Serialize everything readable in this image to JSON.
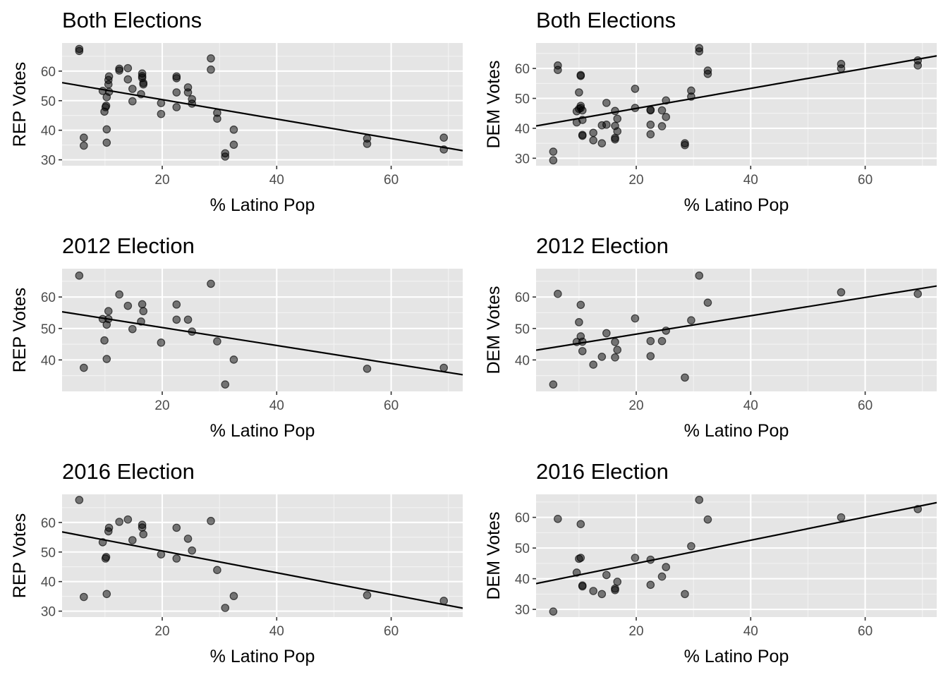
{
  "chart_data": [
    {
      "type": "scatter",
      "title": "Both Elections",
      "xlabel": "% Latino Pop",
      "ylabel": "REP Votes",
      "xlim": [
        2.5,
        72.5
      ],
      "ylim": [
        28,
        69.5
      ],
      "xticks": [
        20,
        40,
        60
      ],
      "yticks": [
        30,
        40,
        50,
        60
      ],
      "grid": true,
      "trend_line": {
        "x": [
          2.5,
          72.5
        ],
        "y": [
          56.1,
          33.1
        ]
      },
      "points": [
        {
          "x": 5.5,
          "y": 67.5
        },
        {
          "x": 5.5,
          "y": 66.8
        },
        {
          "x": 6.3,
          "y": 37.5
        },
        {
          "x": 6.3,
          "y": 34.8
        },
        {
          "x": 9.6,
          "y": 53.3
        },
        {
          "x": 9.9,
          "y": 46.3
        },
        {
          "x": 10.1,
          "y": 47.8
        },
        {
          "x": 10.2,
          "y": 48.3
        },
        {
          "x": 10.3,
          "y": 51.2
        },
        {
          "x": 10.3,
          "y": 40.3
        },
        {
          "x": 10.3,
          "y": 35.8
        },
        {
          "x": 10.6,
          "y": 55.5
        },
        {
          "x": 10.6,
          "y": 57.0
        },
        {
          "x": 10.7,
          "y": 58.2
        },
        {
          "x": 10.7,
          "y": 53.0
        },
        {
          "x": 12.5,
          "y": 60.8
        },
        {
          "x": 12.5,
          "y": 60.2
        },
        {
          "x": 14.0,
          "y": 61.0
        },
        {
          "x": 14.0,
          "y": 57.2
        },
        {
          "x": 14.8,
          "y": 54.0
        },
        {
          "x": 14.8,
          "y": 49.8
        },
        {
          "x": 16.3,
          "y": 52.2
        },
        {
          "x": 16.5,
          "y": 59.2
        },
        {
          "x": 16.5,
          "y": 58.3
        },
        {
          "x": 16.5,
          "y": 57.7
        },
        {
          "x": 16.7,
          "y": 56.0
        },
        {
          "x": 16.7,
          "y": 55.5
        },
        {
          "x": 19.8,
          "y": 49.2
        },
        {
          "x": 19.8,
          "y": 45.5
        },
        {
          "x": 22.5,
          "y": 58.2
        },
        {
          "x": 22.5,
          "y": 57.6
        },
        {
          "x": 22.5,
          "y": 52.8
        },
        {
          "x": 22.5,
          "y": 47.8
        },
        {
          "x": 24.5,
          "y": 54.5
        },
        {
          "x": 24.5,
          "y": 52.8
        },
        {
          "x": 25.2,
          "y": 50.5
        },
        {
          "x": 25.2,
          "y": 49.0
        },
        {
          "x": 28.5,
          "y": 64.3
        },
        {
          "x": 28.5,
          "y": 60.5
        },
        {
          "x": 29.6,
          "y": 45.9
        },
        {
          "x": 29.6,
          "y": 43.9
        },
        {
          "x": 31.0,
          "y": 32.2
        },
        {
          "x": 31.0,
          "y": 31.1
        },
        {
          "x": 32.5,
          "y": 40.2
        },
        {
          "x": 32.5,
          "y": 35.1
        },
        {
          "x": 55.8,
          "y": 37.2
        },
        {
          "x": 55.8,
          "y": 35.4
        },
        {
          "x": 69.2,
          "y": 37.5
        },
        {
          "x": 69.2,
          "y": 33.5
        }
      ]
    },
    {
      "type": "scatter",
      "title": "Both Elections",
      "xlabel": "% Latino Pop",
      "ylabel": "DEM Votes",
      "xlim": [
        2.5,
        72.5
      ],
      "ylim": [
        27.5,
        68.5
      ],
      "xticks": [
        20,
        40,
        60
      ],
      "yticks": [
        30,
        40,
        50,
        60
      ],
      "grid": true,
      "trend_line": {
        "x": [
          2.5,
          72.5
        ],
        "y": [
          40.8,
          64.2
        ]
      },
      "points": [
        {
          "x": 5.5,
          "y": 32.2
        },
        {
          "x": 5.5,
          "y": 29.3
        },
        {
          "x": 6.3,
          "y": 61.0
        },
        {
          "x": 6.3,
          "y": 59.5
        },
        {
          "x": 9.6,
          "y": 45.7
        },
        {
          "x": 9.6,
          "y": 42.0
        },
        {
          "x": 10.0,
          "y": 52.0
        },
        {
          "x": 10.0,
          "y": 46.5
        },
        {
          "x": 10.3,
          "y": 57.8
        },
        {
          "x": 10.3,
          "y": 57.5
        },
        {
          "x": 10.3,
          "y": 47.5
        },
        {
          "x": 10.3,
          "y": 46.8
        },
        {
          "x": 10.6,
          "y": 46.0
        },
        {
          "x": 10.6,
          "y": 42.8
        },
        {
          "x": 10.6,
          "y": 37.8
        },
        {
          "x": 10.6,
          "y": 37.5
        },
        {
          "x": 12.5,
          "y": 38.5
        },
        {
          "x": 12.5,
          "y": 36.0
        },
        {
          "x": 14.0,
          "y": 41.0
        },
        {
          "x": 14.0,
          "y": 35.0
        },
        {
          "x": 14.8,
          "y": 48.5
        },
        {
          "x": 14.8,
          "y": 41.2
        },
        {
          "x": 16.3,
          "y": 45.8
        },
        {
          "x": 16.3,
          "y": 40.8
        },
        {
          "x": 16.3,
          "y": 36.8
        },
        {
          "x": 16.3,
          "y": 36.3
        },
        {
          "x": 16.7,
          "y": 43.2
        },
        {
          "x": 16.7,
          "y": 39.0
        },
        {
          "x": 19.8,
          "y": 53.2
        },
        {
          "x": 19.8,
          "y": 46.8
        },
        {
          "x": 22.5,
          "y": 46.2
        },
        {
          "x": 22.5,
          "y": 46.0
        },
        {
          "x": 22.5,
          "y": 41.2
        },
        {
          "x": 22.5,
          "y": 38.0
        },
        {
          "x": 24.5,
          "y": 46.0
        },
        {
          "x": 24.5,
          "y": 40.7
        },
        {
          "x": 25.2,
          "y": 49.3
        },
        {
          "x": 25.2,
          "y": 43.8
        },
        {
          "x": 28.5,
          "y": 35.0
        },
        {
          "x": 28.5,
          "y": 34.4
        },
        {
          "x": 29.6,
          "y": 52.6
        },
        {
          "x": 29.6,
          "y": 50.6
        },
        {
          "x": 31.0,
          "y": 66.8
        },
        {
          "x": 31.0,
          "y": 65.7
        },
        {
          "x": 32.5,
          "y": 59.3
        },
        {
          "x": 32.5,
          "y": 58.2
        },
        {
          "x": 55.8,
          "y": 61.5
        },
        {
          "x": 55.8,
          "y": 60.0
        },
        {
          "x": 69.2,
          "y": 62.7
        },
        {
          "x": 69.2,
          "y": 61.0
        }
      ]
    },
    {
      "type": "scatter",
      "title": "2012 Election",
      "xlabel": "% Latino Pop",
      "ylabel": "REP Votes",
      "xlim": [
        2.5,
        72.5
      ],
      "ylim": [
        30,
        69
      ],
      "xticks": [
        20,
        40,
        60
      ],
      "yticks": [
        40,
        50,
        60
      ],
      "grid": true,
      "trend_line": {
        "x": [
          2.5,
          72.5
        ],
        "y": [
          55.3,
          35.3
        ]
      },
      "points": [
        {
          "x": 5.5,
          "y": 66.8
        },
        {
          "x": 6.3,
          "y": 37.5
        },
        {
          "x": 9.6,
          "y": 53.0
        },
        {
          "x": 9.9,
          "y": 46.2
        },
        {
          "x": 10.3,
          "y": 51.2
        },
        {
          "x": 10.3,
          "y": 40.3
        },
        {
          "x": 10.6,
          "y": 55.5
        },
        {
          "x": 10.6,
          "y": 53.0
        },
        {
          "x": 12.5,
          "y": 60.8
        },
        {
          "x": 14.0,
          "y": 57.2
        },
        {
          "x": 14.8,
          "y": 49.8
        },
        {
          "x": 16.3,
          "y": 52.2
        },
        {
          "x": 16.5,
          "y": 57.7
        },
        {
          "x": 16.7,
          "y": 55.5
        },
        {
          "x": 19.8,
          "y": 45.5
        },
        {
          "x": 22.5,
          "y": 57.6
        },
        {
          "x": 22.5,
          "y": 52.8
        },
        {
          "x": 24.5,
          "y": 52.8
        },
        {
          "x": 25.2,
          "y": 49.0
        },
        {
          "x": 28.5,
          "y": 64.2
        },
        {
          "x": 29.6,
          "y": 45.9
        },
        {
          "x": 31.0,
          "y": 32.2
        },
        {
          "x": 32.5,
          "y": 40.1
        },
        {
          "x": 55.8,
          "y": 37.2
        },
        {
          "x": 69.2,
          "y": 37.5
        }
      ]
    },
    {
      "type": "scatter",
      "title": "2012 Election",
      "xlabel": "% Latino Pop",
      "ylabel": "DEM Votes",
      "xlim": [
        2.5,
        72.5
      ],
      "ylim": [
        30,
        69
      ],
      "xticks": [
        20,
        40,
        60
      ],
      "yticks": [
        40,
        50,
        60
      ],
      "grid": true,
      "trend_line": {
        "x": [
          2.5,
          72.5
        ],
        "y": [
          43.1,
          63.5
        ]
      },
      "points": [
        {
          "x": 5.5,
          "y": 32.2
        },
        {
          "x": 6.3,
          "y": 61.0
        },
        {
          "x": 9.6,
          "y": 45.7
        },
        {
          "x": 10.0,
          "y": 52.0
        },
        {
          "x": 10.3,
          "y": 57.5
        },
        {
          "x": 10.3,
          "y": 47.5
        },
        {
          "x": 10.6,
          "y": 45.8
        },
        {
          "x": 10.6,
          "y": 42.8
        },
        {
          "x": 12.5,
          "y": 38.5
        },
        {
          "x": 14.0,
          "y": 41.0
        },
        {
          "x": 14.8,
          "y": 48.5
        },
        {
          "x": 16.3,
          "y": 45.7
        },
        {
          "x": 16.3,
          "y": 40.8
        },
        {
          "x": 16.7,
          "y": 43.2
        },
        {
          "x": 19.8,
          "y": 53.2
        },
        {
          "x": 22.5,
          "y": 46.0
        },
        {
          "x": 22.5,
          "y": 41.2
        },
        {
          "x": 24.5,
          "y": 46.0
        },
        {
          "x": 25.2,
          "y": 49.3
        },
        {
          "x": 28.5,
          "y": 34.4
        },
        {
          "x": 29.6,
          "y": 52.6
        },
        {
          "x": 31.0,
          "y": 66.8
        },
        {
          "x": 32.5,
          "y": 58.2
        },
        {
          "x": 55.8,
          "y": 61.5
        },
        {
          "x": 69.2,
          "y": 61.0
        }
      ]
    },
    {
      "type": "scatter",
      "title": "2016 Election",
      "xlabel": "% Latino Pop",
      "ylabel": "REP Votes",
      "xlim": [
        2.5,
        72.5
      ],
      "ylim": [
        28,
        69.5
      ],
      "xticks": [
        20,
        40,
        60
      ],
      "yticks": [
        30,
        40,
        50,
        60
      ],
      "grid": true,
      "trend_line": {
        "x": [
          2.5,
          72.5
        ],
        "y": [
          56.8,
          31.0
        ]
      },
      "points": [
        {
          "x": 5.5,
          "y": 67.6
        },
        {
          "x": 6.3,
          "y": 34.8
        },
        {
          "x": 9.6,
          "y": 53.3
        },
        {
          "x": 10.1,
          "y": 47.8
        },
        {
          "x": 10.2,
          "y": 48.3
        },
        {
          "x": 10.3,
          "y": 35.8
        },
        {
          "x": 10.6,
          "y": 57.0
        },
        {
          "x": 10.7,
          "y": 58.2
        },
        {
          "x": 12.5,
          "y": 60.2
        },
        {
          "x": 14.0,
          "y": 61.0
        },
        {
          "x": 14.8,
          "y": 54.0
        },
        {
          "x": 16.5,
          "y": 59.2
        },
        {
          "x": 16.5,
          "y": 58.3
        },
        {
          "x": 16.7,
          "y": 56.0
        },
        {
          "x": 19.8,
          "y": 49.2
        },
        {
          "x": 22.5,
          "y": 58.2
        },
        {
          "x": 22.5,
          "y": 47.8
        },
        {
          "x": 24.5,
          "y": 54.5
        },
        {
          "x": 25.2,
          "y": 50.5
        },
        {
          "x": 28.5,
          "y": 60.5
        },
        {
          "x": 29.6,
          "y": 43.9
        },
        {
          "x": 31.0,
          "y": 31.1
        },
        {
          "x": 32.5,
          "y": 35.1
        },
        {
          "x": 55.8,
          "y": 35.4
        },
        {
          "x": 69.2,
          "y": 33.5
        }
      ]
    },
    {
      "type": "scatter",
      "title": "2016 Election",
      "xlabel": "% Latino Pop",
      "ylabel": "DEM Votes",
      "xlim": [
        2.5,
        72.5
      ],
      "ylim": [
        27.5,
        67.5
      ],
      "xticks": [
        20,
        40,
        60
      ],
      "yticks": [
        30,
        40,
        50,
        60
      ],
      "grid": true,
      "trend_line": {
        "x": [
          2.5,
          72.5
        ],
        "y": [
          38.4,
          64.8
        ]
      },
      "points": [
        {
          "x": 5.5,
          "y": 29.3
        },
        {
          "x": 6.3,
          "y": 59.5
        },
        {
          "x": 9.6,
          "y": 42.0
        },
        {
          "x": 10.0,
          "y": 46.5
        },
        {
          "x": 10.3,
          "y": 57.8
        },
        {
          "x": 10.3,
          "y": 46.8
        },
        {
          "x": 10.6,
          "y": 37.8
        },
        {
          "x": 10.6,
          "y": 37.5
        },
        {
          "x": 12.5,
          "y": 36.0
        },
        {
          "x": 14.0,
          "y": 35.0
        },
        {
          "x": 14.8,
          "y": 41.2
        },
        {
          "x": 16.3,
          "y": 36.8
        },
        {
          "x": 16.3,
          "y": 36.3
        },
        {
          "x": 16.7,
          "y": 39.0
        },
        {
          "x": 19.8,
          "y": 46.8
        },
        {
          "x": 22.5,
          "y": 46.2
        },
        {
          "x": 22.5,
          "y": 38.0
        },
        {
          "x": 24.5,
          "y": 40.7
        },
        {
          "x": 25.2,
          "y": 43.8
        },
        {
          "x": 28.5,
          "y": 35.0
        },
        {
          "x": 29.6,
          "y": 50.6
        },
        {
          "x": 31.0,
          "y": 65.7
        },
        {
          "x": 32.5,
          "y": 59.3
        },
        {
          "x": 55.8,
          "y": 60.0
        },
        {
          "x": 69.2,
          "y": 62.7
        }
      ]
    }
  ]
}
